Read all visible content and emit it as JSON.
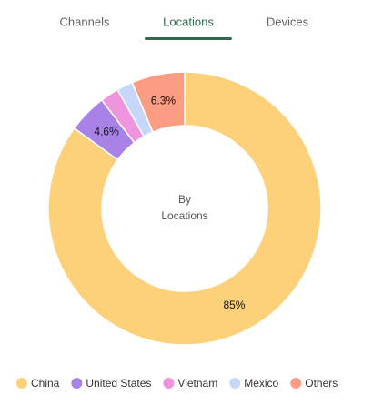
{
  "tabs": [
    "Channels",
    "Locations",
    "Devices"
  ],
  "selected_tab": 1,
  "chart_data": {
    "type": "donut",
    "center_text": [
      "By",
      "Locations"
    ],
    "categories": [
      "China",
      "United States",
      "Vietnam",
      "Mexico",
      "Others"
    ],
    "values": [
      85,
      4.6,
      2.2,
      1.9,
      6.3
    ],
    "value_labels": [
      "85%",
      "4.6%",
      null,
      null,
      "6.3%"
    ],
    "colors": [
      "#fdd07a",
      "#a982e8",
      "#ef95dd",
      "#c6d7fb",
      "#fb9d83"
    ],
    "legend": "bottom"
  }
}
